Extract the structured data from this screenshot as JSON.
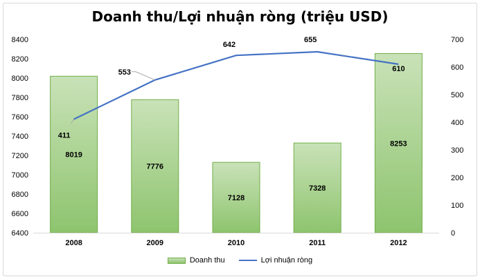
{
  "chart_data": {
    "type": "bar+line",
    "title": "Doanh thu/Lợi nhuận ròng (triệu USD)",
    "categories": [
      "2008",
      "2009",
      "2010",
      "2011",
      "2012"
    ],
    "series": [
      {
        "name": "Doanh thu",
        "kind": "bar",
        "axis": "left",
        "values": [
          8019,
          7776,
          7128,
          7328,
          8253
        ],
        "color": "#70ad47"
      },
      {
        "name": "Lợi nhuận ròng",
        "kind": "line",
        "axis": "right",
        "values": [
          411,
          553,
          642,
          655,
          610
        ],
        "color": "#4472c4"
      }
    ],
    "y_left": {
      "min": 6400,
      "max": 8400,
      "step": 200,
      "ticks": [
        "6400",
        "6600",
        "6800",
        "7000",
        "7200",
        "7400",
        "7600",
        "7800",
        "8000",
        "8200",
        "8400"
      ]
    },
    "y_right": {
      "min": 0,
      "max": 700,
      "step": 100,
      "ticks": [
        "0",
        "100",
        "200",
        "300",
        "400",
        "500",
        "600",
        "700"
      ]
    },
    "grid": false,
    "legend_position": "bottom"
  }
}
